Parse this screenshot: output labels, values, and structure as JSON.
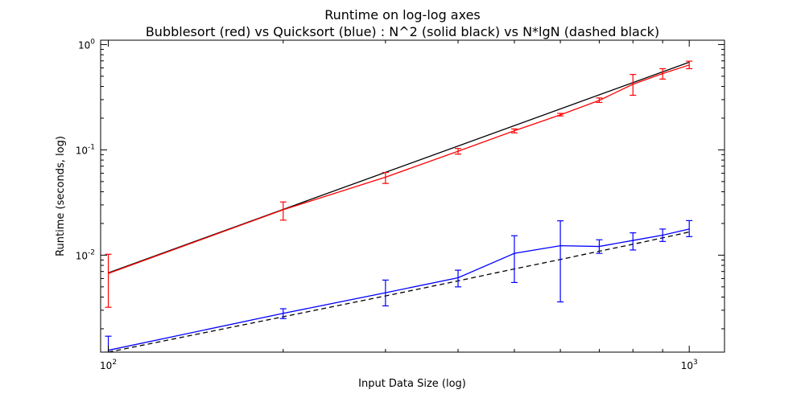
{
  "chart_data": {
    "type": "line",
    "title": "Runtime on log-log axes",
    "subtitle": "Bubblesort (red) vs Quicksort (blue) : N^2 (solid black) vs N*lgN (dashed black)",
    "xlabel": "Input Data Size (log)",
    "ylabel": "Runtime (seconds, log)",
    "xscale": "log",
    "yscale": "log",
    "xlim": [
      97,
      1150
    ],
    "ylim": [
      0.0012,
      1.1
    ],
    "grid": false,
    "legend": "none",
    "x_ticks": [
      {
        "value": 100,
        "base": "10",
        "exp": "2"
      },
      {
        "value": 1000,
        "base": "10",
        "exp": "3"
      }
    ],
    "y_ticks": [
      {
        "value": 0.01,
        "base": "10",
        "exp": "-2"
      },
      {
        "value": 0.1,
        "base": "10",
        "exp": "-1"
      },
      {
        "value": 1,
        "base": "10",
        "exp": "0"
      }
    ],
    "series": [
      {
        "color": "#000000",
        "dash": "solid",
        "x": [
          100,
          1000
        ],
        "y": [
          0.0068,
          0.68
        ]
      },
      {
        "color": "#000000",
        "dash": "dashed",
        "x": [
          100,
          200,
          300,
          400,
          500,
          600,
          700,
          800,
          900,
          1000
        ],
        "y": [
          0.0012,
          0.0026,
          0.0041,
          0.0057,
          0.0074,
          0.0091,
          0.0109,
          0.0127,
          0.0146,
          0.0166
        ]
      },
      {
        "color": "#ff0000",
        "dash": "solid",
        "x": [
          100,
          200,
          300,
          400,
          500,
          600,
          700,
          800,
          900,
          1000
        ],
        "y": [
          0.0067,
          0.027,
          0.055,
          0.097,
          0.152,
          0.215,
          0.295,
          0.42,
          0.53,
          0.64
        ],
        "err_low": [
          0.0032,
          0.0215,
          0.048,
          0.091,
          0.145,
          0.21,
          0.282,
          0.33,
          0.47,
          0.59
        ],
        "err_high": [
          0.0102,
          0.032,
          0.061,
          0.103,
          0.158,
          0.222,
          0.311,
          0.52,
          0.59,
          0.695
        ]
      },
      {
        "color": "#0000ff",
        "dash": "solid",
        "x": [
          100,
          200,
          300,
          400,
          500,
          600,
          700,
          800,
          900,
          1000
        ],
        "y": [
          0.00125,
          0.0028,
          0.0044,
          0.0061,
          0.0104,
          0.0123,
          0.0121,
          0.0138,
          0.0155,
          0.0177
        ],
        "err_low": [
          0.0012,
          0.0025,
          0.0033,
          0.005,
          0.0055,
          0.0036,
          0.0104,
          0.0112,
          0.0135,
          0.015
        ],
        "err_high": [
          0.0017,
          0.0031,
          0.0058,
          0.0072,
          0.0153,
          0.0212,
          0.014,
          0.0163,
          0.0177,
          0.0213
        ]
      }
    ]
  }
}
